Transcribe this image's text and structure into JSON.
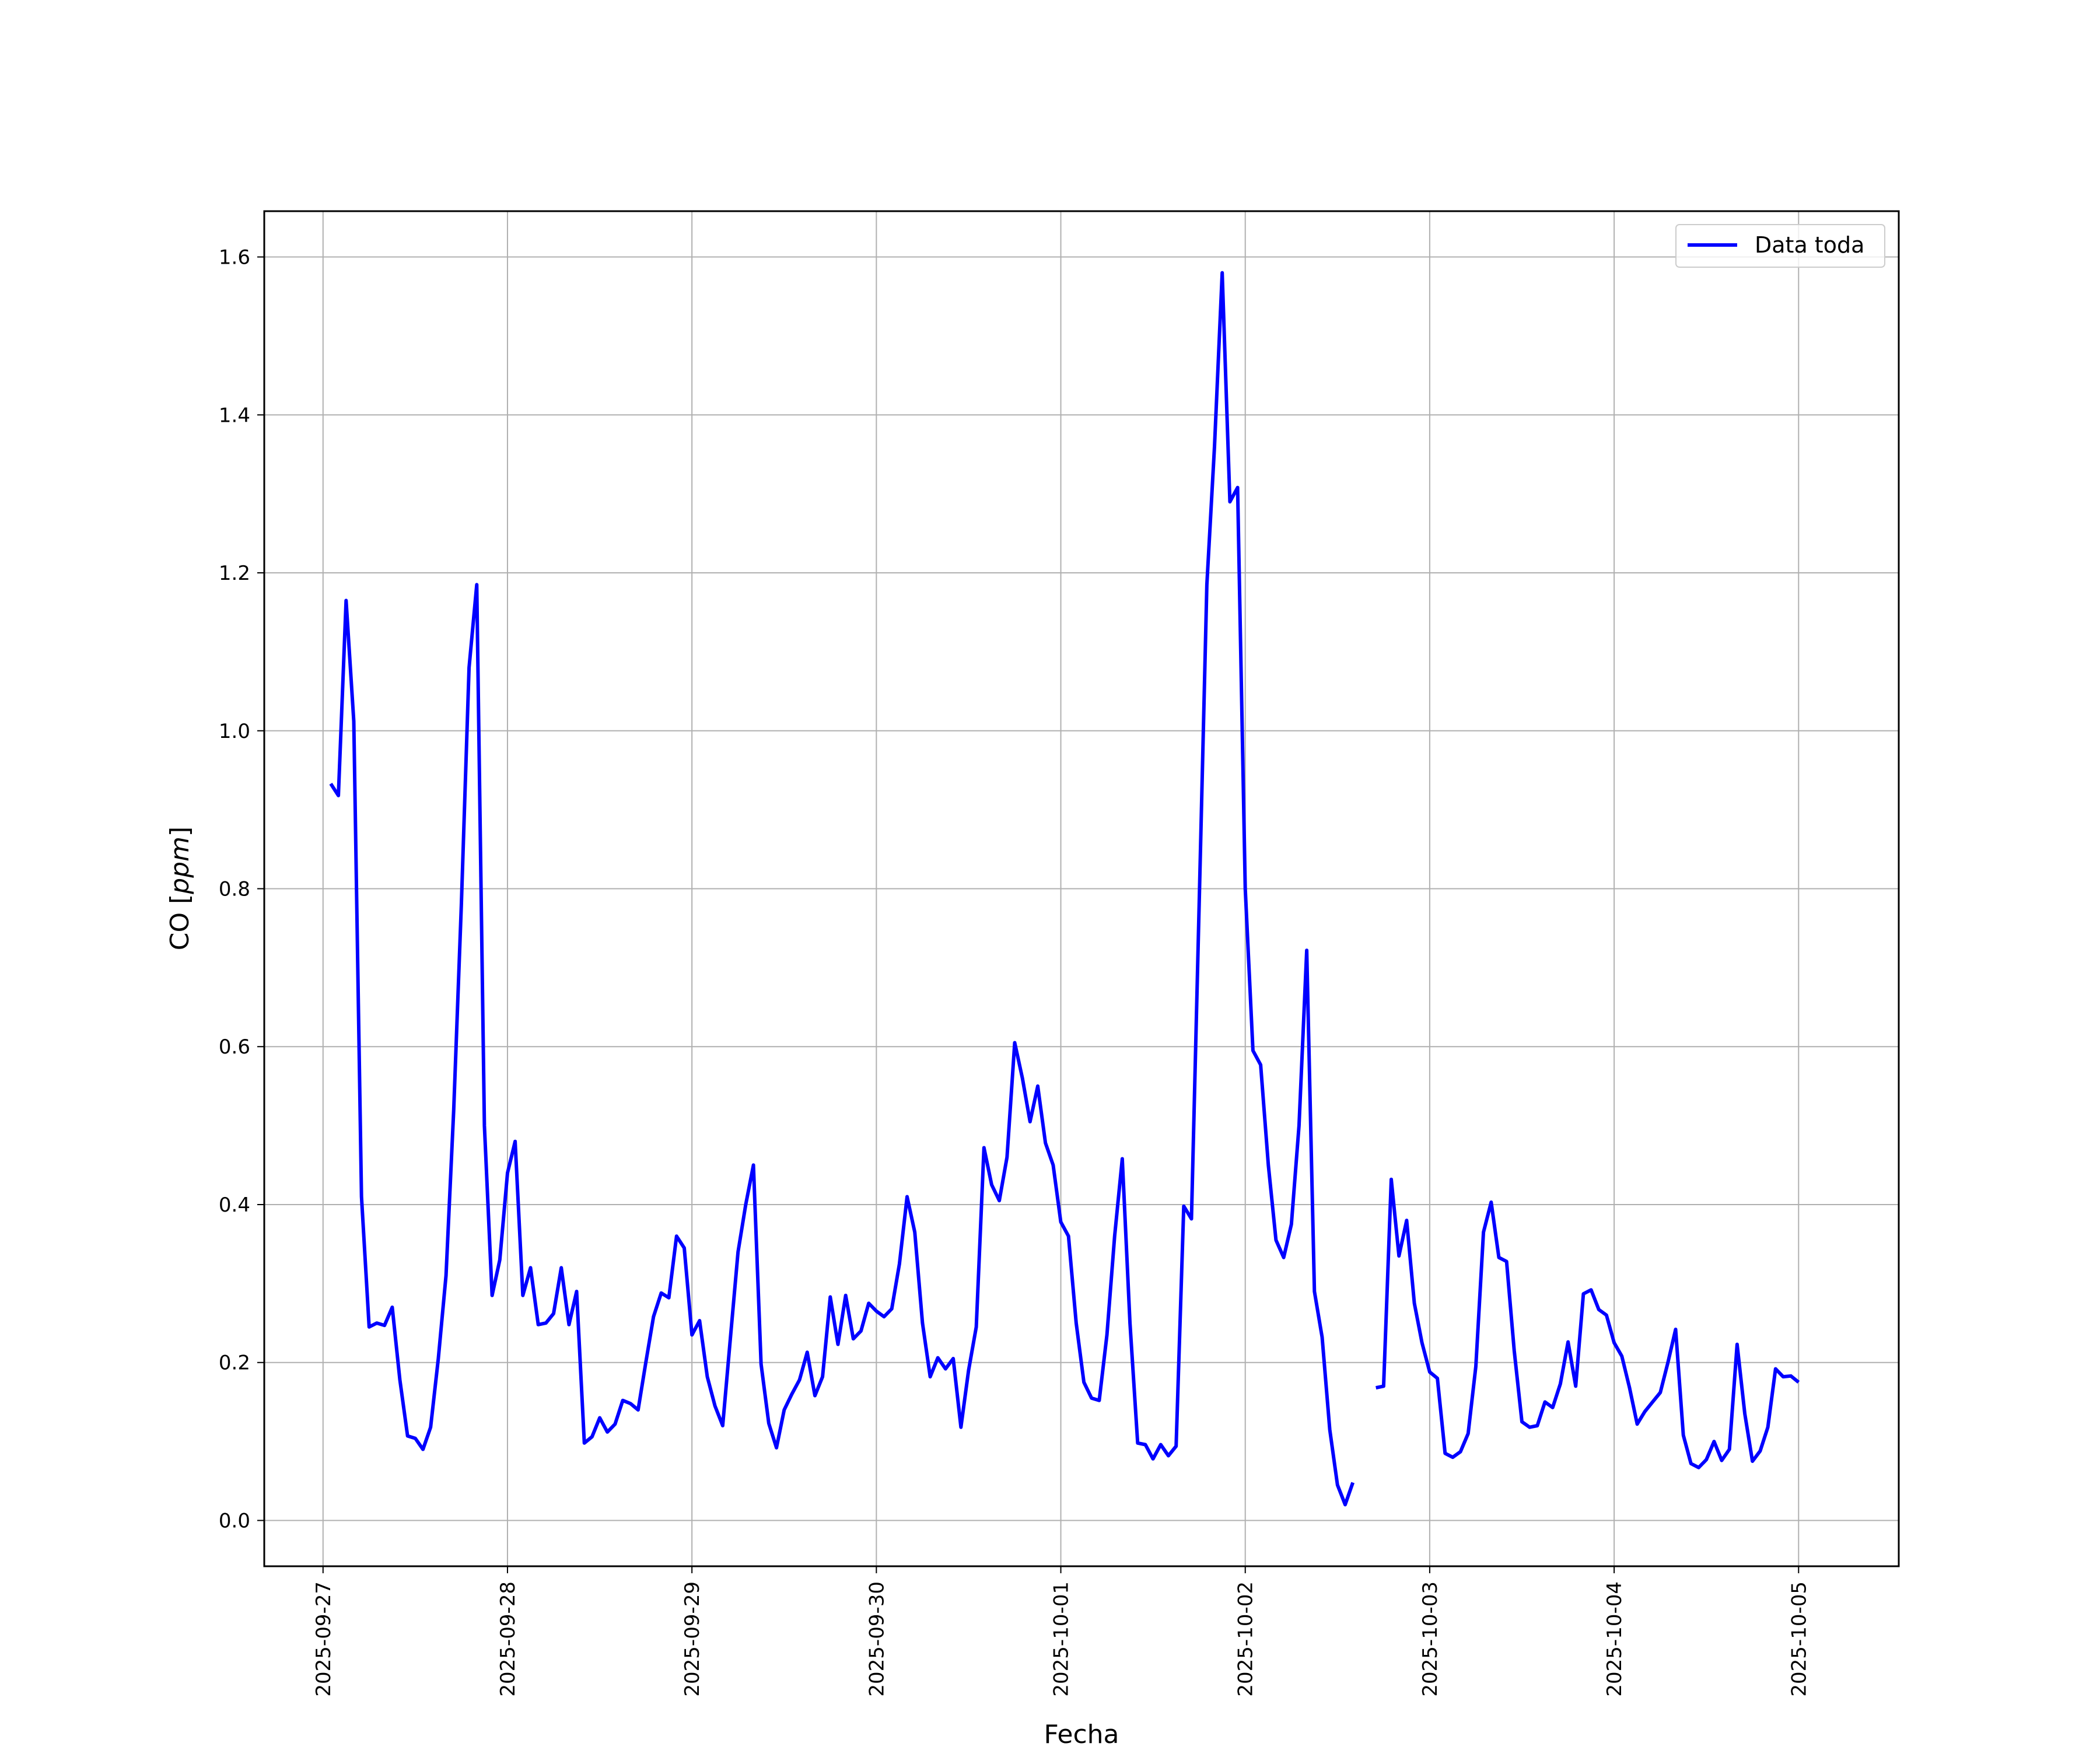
{
  "chart_data": {
    "type": "line",
    "xlabel": "Fecha",
    "ylabel_prefix": "CO [",
    "ylabel_unit": "ppm",
    "ylabel_suffix": "]",
    "x_ticks": [
      "2025-09-27",
      "2025-09-28",
      "2025-09-29",
      "2025-09-30",
      "2025-10-01",
      "2025-10-02",
      "2025-10-03",
      "2025-10-04",
      "2025-10-05"
    ],
    "y_ticks": [
      "0.0",
      "0.2",
      "0.4",
      "0.6",
      "0.8",
      "1.0",
      "1.2",
      "1.4",
      "1.6"
    ],
    "xlim": [
      "2025-09-26T16:21",
      "2025-10-05T13:02"
    ],
    "ylim": [
      -0.058,
      1.658
    ],
    "grid": true,
    "legend_position": "top-right",
    "colors": {
      "series": "#0000ff",
      "grid": "#b0b0b0"
    },
    "series": [
      {
        "name": "Data toda",
        "points": [
          [
            "2025-09-27T01:00",
            0.933
          ],
          [
            "2025-09-27T02:00",
            0.918
          ],
          [
            "2025-09-27T03:00",
            1.165
          ],
          [
            "2025-09-27T04:00",
            1.012
          ],
          [
            "2025-09-27T05:00",
            0.41
          ],
          [
            "2025-09-27T06:00",
            0.245
          ],
          [
            "2025-09-27T07:00",
            0.25
          ],
          [
            "2025-09-27T08:00",
            0.247
          ],
          [
            "2025-09-27T09:00",
            0.27
          ],
          [
            "2025-09-27T10:00",
            0.178
          ],
          [
            "2025-09-27T11:00",
            0.107
          ],
          [
            "2025-09-27T12:00",
            0.104
          ],
          [
            "2025-09-27T13:00",
            0.09
          ],
          [
            "2025-09-27T14:00",
            0.118
          ],
          [
            "2025-09-27T15:00",
            0.205
          ],
          [
            "2025-09-27T16:00",
            0.31
          ],
          [
            "2025-09-27T17:00",
            0.52
          ],
          [
            "2025-09-27T18:00",
            0.78
          ],
          [
            "2025-09-27T19:00",
            1.08
          ],
          [
            "2025-09-27T20:00",
            1.185
          ],
          [
            "2025-09-27T21:00",
            0.5
          ],
          [
            "2025-09-27T22:00",
            0.285
          ],
          [
            "2025-09-27T23:00",
            0.33
          ],
          [
            "2025-09-28T00:00",
            0.44
          ],
          [
            "2025-09-28T01:00",
            0.48
          ],
          [
            "2025-09-28T02:00",
            0.285
          ],
          [
            "2025-09-28T03:00",
            0.32
          ],
          [
            "2025-09-28T04:00",
            0.248
          ],
          [
            "2025-09-28T05:00",
            0.25
          ],
          [
            "2025-09-28T06:00",
            0.262
          ],
          [
            "2025-09-28T07:00",
            0.32
          ],
          [
            "2025-09-28T08:00",
            0.248
          ],
          [
            "2025-09-28T09:00",
            0.29
          ],
          [
            "2025-09-28T10:00",
            0.098
          ],
          [
            "2025-09-28T11:00",
            0.106
          ],
          [
            "2025-09-28T12:00",
            0.13
          ],
          [
            "2025-09-28T13:00",
            0.112
          ],
          [
            "2025-09-28T14:00",
            0.122
          ],
          [
            "2025-09-28T15:00",
            0.152
          ],
          [
            "2025-09-28T16:00",
            0.148
          ],
          [
            "2025-09-28T17:00",
            0.14
          ],
          [
            "2025-09-28T18:00",
            0.2
          ],
          [
            "2025-09-28T19:00",
            0.258
          ],
          [
            "2025-09-28T20:00",
            0.288
          ],
          [
            "2025-09-28T21:00",
            0.282
          ],
          [
            "2025-09-28T22:00",
            0.36
          ],
          [
            "2025-09-28T23:00",
            0.345
          ],
          [
            "2025-09-29T00:00",
            0.235
          ],
          [
            "2025-09-29T01:00",
            0.253
          ],
          [
            "2025-09-29T02:00",
            0.182
          ],
          [
            "2025-09-29T03:00",
            0.145
          ],
          [
            "2025-09-29T04:00",
            0.12
          ],
          [
            "2025-09-29T05:00",
            0.23
          ],
          [
            "2025-09-29T06:00",
            0.34
          ],
          [
            "2025-09-29T07:00",
            0.4
          ],
          [
            "2025-09-29T08:00",
            0.45
          ],
          [
            "2025-09-29T09:00",
            0.198
          ],
          [
            "2025-09-29T10:00",
            0.123
          ],
          [
            "2025-09-29T11:00",
            0.092
          ],
          [
            "2025-09-29T12:00",
            0.14
          ],
          [
            "2025-09-29T13:00",
            0.16
          ],
          [
            "2025-09-29T14:00",
            0.178
          ],
          [
            "2025-09-29T15:00",
            0.213
          ],
          [
            "2025-09-29T16:00",
            0.158
          ],
          [
            "2025-09-29T17:00",
            0.182
          ],
          [
            "2025-09-29T18:00",
            0.283
          ],
          [
            "2025-09-29T19:00",
            0.223
          ],
          [
            "2025-09-29T20:00",
            0.285
          ],
          [
            "2025-09-29T21:00",
            0.23
          ],
          [
            "2025-09-29T22:00",
            0.24
          ],
          [
            "2025-09-29T23:00",
            0.275
          ],
          [
            "2025-09-30T00:00",
            0.265
          ],
          [
            "2025-09-30T01:00",
            0.258
          ],
          [
            "2025-09-30T02:00",
            0.268
          ],
          [
            "2025-09-30T03:00",
            0.325
          ],
          [
            "2025-09-30T04:00",
            0.41
          ],
          [
            "2025-09-30T05:00",
            0.365
          ],
          [
            "2025-09-30T06:00",
            0.25
          ],
          [
            "2025-09-30T07:00",
            0.182
          ],
          [
            "2025-09-30T08:00",
            0.206
          ],
          [
            "2025-09-30T09:00",
            0.192
          ],
          [
            "2025-09-30T10:00",
            0.205
          ],
          [
            "2025-09-30T11:00",
            0.118
          ],
          [
            "2025-09-30T12:00",
            0.19
          ],
          [
            "2025-09-30T13:00",
            0.245
          ],
          [
            "2025-09-30T14:00",
            0.472
          ],
          [
            "2025-09-30T15:00",
            0.425
          ],
          [
            "2025-09-30T16:00",
            0.405
          ],
          [
            "2025-09-30T17:00",
            0.46
          ],
          [
            "2025-09-30T18:00",
            0.605
          ],
          [
            "2025-09-30T19:00",
            0.56
          ],
          [
            "2025-09-30T20:00",
            0.505
          ],
          [
            "2025-09-30T21:00",
            0.55
          ],
          [
            "2025-09-30T22:00",
            0.478
          ],
          [
            "2025-09-30T23:00",
            0.45
          ],
          [
            "2025-10-01T00:00",
            0.378
          ],
          [
            "2025-10-01T01:00",
            0.36
          ],
          [
            "2025-10-01T02:00",
            0.25
          ],
          [
            "2025-10-01T03:00",
            0.175
          ],
          [
            "2025-10-01T04:00",
            0.155
          ],
          [
            "2025-10-01T05:00",
            0.152
          ],
          [
            "2025-10-01T06:00",
            0.235
          ],
          [
            "2025-10-01T07:00",
            0.36
          ],
          [
            "2025-10-01T08:00",
            0.458
          ],
          [
            "2025-10-01T09:00",
            0.25
          ],
          [
            "2025-10-01T10:00",
            0.098
          ],
          [
            "2025-10-01T11:00",
            0.096
          ],
          [
            "2025-10-01T12:00",
            0.078
          ],
          [
            "2025-10-01T13:00",
            0.096
          ],
          [
            "2025-10-01T14:00",
            0.082
          ],
          [
            "2025-10-01T15:00",
            0.094
          ],
          [
            "2025-10-01T16:00",
            0.398
          ],
          [
            "2025-10-01T17:00",
            0.382
          ],
          [
            "2025-10-01T18:00",
            0.78
          ],
          [
            "2025-10-01T19:00",
            1.185
          ],
          [
            "2025-10-01T20:00",
            1.36
          ],
          [
            "2025-10-01T21:00",
            1.58
          ],
          [
            "2025-10-01T22:00",
            1.29
          ],
          [
            "2025-10-01T23:00",
            1.308
          ],
          [
            "2025-10-02T00:00",
            0.8
          ],
          [
            "2025-10-02T01:00",
            0.595
          ],
          [
            "2025-10-02T02:00",
            0.577
          ],
          [
            "2025-10-02T03:00",
            0.45
          ],
          [
            "2025-10-02T04:00",
            0.355
          ],
          [
            "2025-10-02T05:00",
            0.333
          ],
          [
            "2025-10-02T06:00",
            0.375
          ],
          [
            "2025-10-02T07:00",
            0.5
          ],
          [
            "2025-10-02T08:00",
            0.722
          ],
          [
            "2025-10-02T09:00",
            0.29
          ],
          [
            "2025-10-02T10:00",
            0.232
          ],
          [
            "2025-10-02T11:00",
            0.115
          ],
          [
            "2025-10-02T12:00",
            0.045
          ],
          [
            "2025-10-02T13:00",
            0.02
          ],
          [
            "2025-10-02T14:00",
            0.048
          ],
          null,
          [
            "2025-10-02T17:00",
            0.168
          ],
          [
            "2025-10-02T18:00",
            0.17
          ],
          [
            "2025-10-02T19:00",
            0.432
          ],
          [
            "2025-10-02T20:00",
            0.335
          ],
          [
            "2025-10-02T21:00",
            0.38
          ],
          [
            "2025-10-02T22:00",
            0.275
          ],
          [
            "2025-10-02T23:00",
            0.225
          ],
          [
            "2025-10-03T00:00",
            0.188
          ],
          [
            "2025-10-03T01:00",
            0.18
          ],
          [
            "2025-10-03T02:00",
            0.085
          ],
          [
            "2025-10-03T03:00",
            0.08
          ],
          [
            "2025-10-03T04:00",
            0.087
          ],
          [
            "2025-10-03T05:00",
            0.11
          ],
          [
            "2025-10-03T06:00",
            0.195
          ],
          [
            "2025-10-03T07:00",
            0.365
          ],
          [
            "2025-10-03T08:00",
            0.403
          ],
          [
            "2025-10-03T09:00",
            0.333
          ],
          [
            "2025-10-03T10:00",
            0.328
          ],
          [
            "2025-10-03T11:00",
            0.215
          ],
          [
            "2025-10-03T12:00",
            0.125
          ],
          [
            "2025-10-03T13:00",
            0.118
          ],
          [
            "2025-10-03T14:00",
            0.12
          ],
          [
            "2025-10-03T15:00",
            0.15
          ],
          [
            "2025-10-03T16:00",
            0.143
          ],
          [
            "2025-10-03T17:00",
            0.173
          ],
          [
            "2025-10-03T18:00",
            0.226
          ],
          [
            "2025-10-03T19:00",
            0.17
          ],
          [
            "2025-10-03T20:00",
            0.287
          ],
          [
            "2025-10-03T21:00",
            0.292
          ],
          [
            "2025-10-03T22:00",
            0.267
          ],
          [
            "2025-10-03T23:00",
            0.26
          ],
          [
            "2025-10-04T00:00",
            0.225
          ],
          [
            "2025-10-04T01:00",
            0.208
          ],
          [
            "2025-10-04T02:00",
            0.168
          ],
          [
            "2025-10-04T03:00",
            0.122
          ],
          [
            "2025-10-04T04:00",
            0.138
          ],
          [
            "2025-10-04T05:00",
            0.15
          ],
          [
            "2025-10-04T06:00",
            0.162
          ],
          [
            "2025-10-04T07:00",
            0.2
          ],
          [
            "2025-10-04T08:00",
            0.242
          ],
          [
            "2025-10-04T09:00",
            0.108
          ],
          [
            "2025-10-04T10:00",
            0.072
          ],
          [
            "2025-10-04T11:00",
            0.067
          ],
          [
            "2025-10-04T12:00",
            0.077
          ],
          [
            "2025-10-04T13:00",
            0.1
          ],
          [
            "2025-10-04T14:00",
            0.076
          ],
          [
            "2025-10-04T15:00",
            0.09
          ],
          [
            "2025-10-04T16:00",
            0.223
          ],
          [
            "2025-10-04T17:00",
            0.135
          ],
          [
            "2025-10-04T18:00",
            0.075
          ],
          [
            "2025-10-04T19:00",
            0.088
          ],
          [
            "2025-10-04T20:00",
            0.118
          ],
          [
            "2025-10-04T21:00",
            0.192
          ],
          [
            "2025-10-04T22:00",
            0.182
          ],
          [
            "2025-10-04T23:00",
            0.183
          ],
          [
            "2025-10-05T00:00",
            0.175
          ]
        ]
      }
    ]
  }
}
